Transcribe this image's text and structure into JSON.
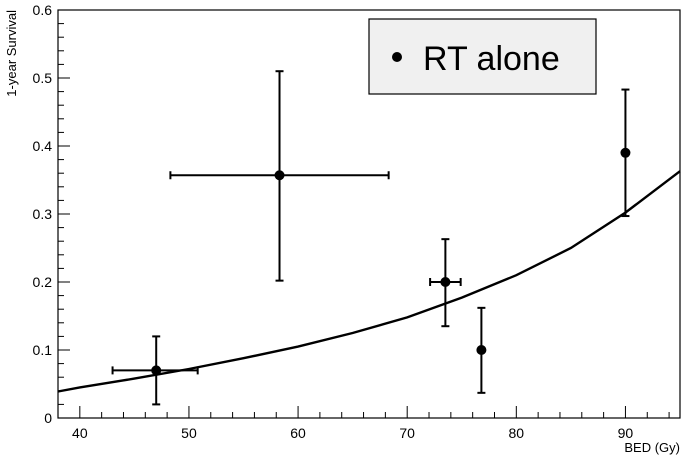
{
  "chart_data": {
    "type": "scatter",
    "xlabel": "BED (Gy)",
    "ylabel": "1-year Survival",
    "xlim": [
      38,
      95
    ],
    "ylim": [
      0,
      0.6
    ],
    "x_ticks": [
      40,
      50,
      60,
      70,
      80,
      90
    ],
    "y_ticks": [
      0,
      0.1,
      0.2,
      0.3,
      0.4,
      0.5,
      0.6
    ],
    "x_tick_labels": [
      "40",
      "50",
      "60",
      "70",
      "80",
      "90"
    ],
    "y_tick_labels": [
      "0",
      "0.1",
      "0.2",
      "0.3",
      "0.4",
      "0.5",
      "0.6"
    ],
    "grid": false,
    "legend": {
      "position": "top-right",
      "entries": [
        "RT alone"
      ]
    },
    "series": [
      {
        "name": "RT alone",
        "points": [
          {
            "x": 47.0,
            "y": 0.07,
            "xerr_low": 43.0,
            "xerr_high": 50.8,
            "yerr_low": 0.02,
            "yerr_high": 0.12
          },
          {
            "x": 58.3,
            "y": 0.357,
            "xerr_low": 48.3,
            "xerr_high": 68.3,
            "yerr_low": 0.202,
            "yerr_high": 0.51
          },
          {
            "x": 73.5,
            "y": 0.2,
            "xerr_low": 72.1,
            "xerr_high": 74.9,
            "yerr_low": 0.135,
            "yerr_high": 0.263
          },
          {
            "x": 76.8,
            "y": 0.1,
            "xerr_low": 76.8,
            "xerr_high": 76.8,
            "yerr_low": 0.037,
            "yerr_high": 0.162
          },
          {
            "x": 90.0,
            "y": 0.39,
            "xerr_low": 90.0,
            "xerr_high": 90.0,
            "yerr_low": 0.297,
            "yerr_high": 0.483
          }
        ]
      },
      {
        "type": "line",
        "x": [
          38,
          40,
          45,
          50,
          55,
          60,
          65,
          70,
          75,
          80,
          85,
          90,
          95
        ],
        "values": [
          0.039,
          0.045,
          0.058,
          0.072,
          0.088,
          0.105,
          0.125,
          0.148,
          0.177,
          0.21,
          0.25,
          0.302,
          0.363
        ]
      }
    ]
  }
}
